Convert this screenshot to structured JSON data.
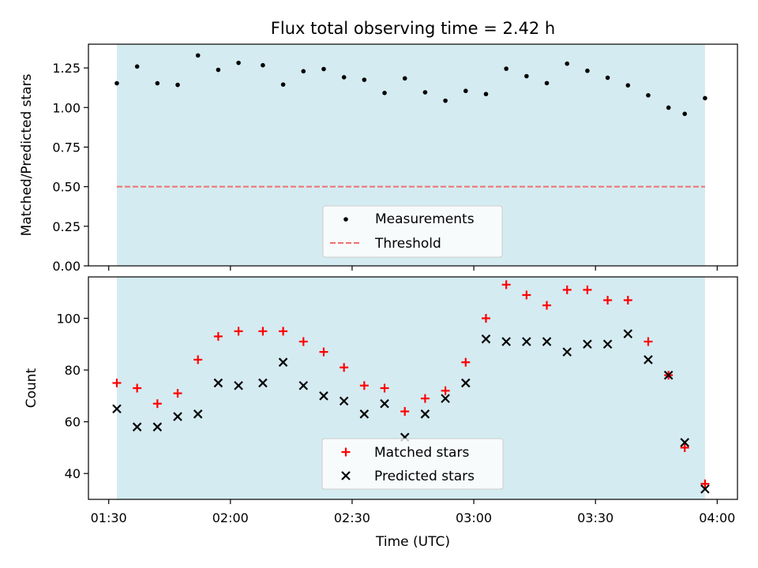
{
  "chart_data": {
    "title": "Flux total observing time = 2.42 h",
    "xlabel": "Time (UTC)",
    "x_ticks": [
      "01:30",
      "02:00",
      "02:30",
      "03:00",
      "03:30",
      "04:00"
    ],
    "x_range_minutes_utc": [
      85,
      245
    ],
    "observing_window_utc": [
      "01:32",
      "03:57"
    ],
    "shade_color": "#d4ebf1",
    "top_panel": {
      "type": "scatter",
      "ylabel": "Matched/Predicted stars",
      "ylim": [
        0,
        1.4
      ],
      "y_ticks": [
        "0.00",
        "0.25",
        "0.50",
        "0.75",
        "1.00",
        "1.25"
      ],
      "threshold": 0.5,
      "threshold_color": "#f07070",
      "legend_position": "bottom-center",
      "legend": [
        {
          "label": "Measurements",
          "marker": "dot",
          "color": "#000000"
        },
        {
          "label": "Threshold",
          "marker": "dashed-line",
          "color": "#f07070"
        }
      ],
      "x": [
        "01:32",
        "01:37",
        "01:42",
        "01:47",
        "01:52",
        "01:57",
        "02:02",
        "02:08",
        "02:13",
        "02:18",
        "02:23",
        "02:28",
        "02:33",
        "02:38",
        "02:43",
        "02:48",
        "02:53",
        "02:58",
        "03:03",
        "03:08",
        "03:13",
        "03:18",
        "03:23",
        "03:28",
        "03:33",
        "03:38",
        "03:43",
        "03:48",
        "03:52",
        "03:57"
      ],
      "series": [
        {
          "name": "Measurements",
          "values": [
            1.153,
            1.259,
            1.153,
            1.143,
            1.329,
            1.238,
            1.282,
            1.267,
            1.145,
            1.229,
            1.243,
            1.191,
            1.175,
            1.092,
            1.184,
            1.096,
            1.043,
            1.105,
            1.085,
            1.245,
            1.198,
            1.154,
            1.277,
            1.232,
            1.188,
            1.14,
            1.077,
            0.999,
            0.96,
            1.059
          ]
        }
      ]
    },
    "bottom_panel": {
      "type": "scatter",
      "ylabel": "Count",
      "ylim": [
        30,
        116
      ],
      "y_ticks": [
        "40",
        "60",
        "80",
        "100"
      ],
      "legend_position": "bottom-center",
      "legend": [
        {
          "label": "Matched stars",
          "marker": "plus",
          "color": "#ff0000"
        },
        {
          "label": "Predicted stars",
          "marker": "x",
          "color": "#000000"
        }
      ],
      "x": [
        "01:32",
        "01:37",
        "01:42",
        "01:47",
        "01:52",
        "01:57",
        "02:02",
        "02:08",
        "02:13",
        "02:18",
        "02:23",
        "02:28",
        "02:33",
        "02:38",
        "02:43",
        "02:48",
        "02:53",
        "02:58",
        "03:03",
        "03:08",
        "03:13",
        "03:18",
        "03:23",
        "03:28",
        "03:33",
        "03:38",
        "03:43",
        "03:48",
        "03:52",
        "03:57"
      ],
      "series": [
        {
          "name": "Matched stars",
          "values": [
            75,
            73,
            67,
            71,
            84,
            93,
            95,
            95,
            95,
            91,
            87,
            81,
            74,
            73,
            64,
            69,
            72,
            83,
            100,
            113,
            109,
            105,
            111,
            111,
            107,
            107,
            91,
            78,
            50,
            36
          ]
        },
        {
          "name": "Predicted stars",
          "values": [
            65,
            58,
            58,
            62,
            63,
            75,
            74,
            75,
            83,
            74,
            70,
            68,
            63,
            67,
            54,
            63,
            69,
            75,
            92,
            91,
            91,
            91,
            87,
            90,
            90,
            94,
            84,
            78,
            52,
            34
          ]
        }
      ]
    }
  }
}
